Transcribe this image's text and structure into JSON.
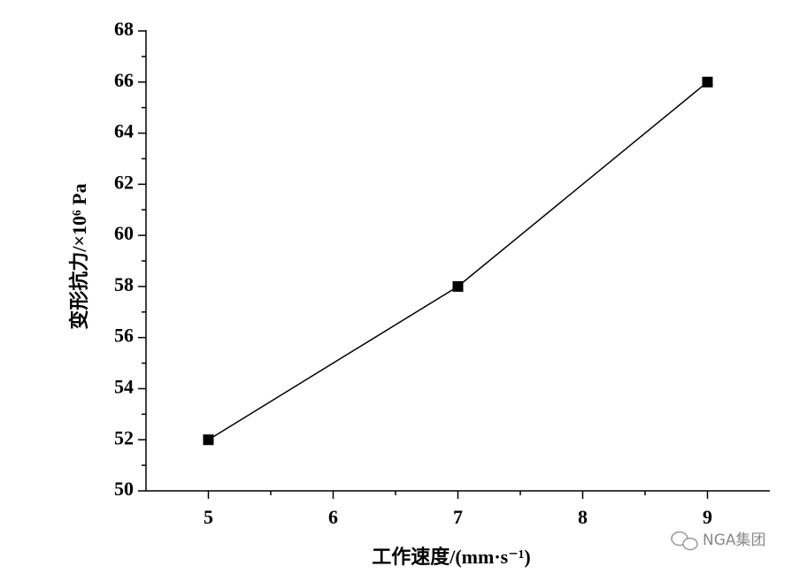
{
  "chart_data": {
    "type": "line",
    "x": [
      5,
      7,
      9
    ],
    "series": [
      {
        "color": "#000000",
        "values": [
          52,
          58,
          66
        ]
      }
    ],
    "xlim": [
      4.5,
      9.5
    ],
    "xticks": [
      5,
      6,
      7,
      8,
      9
    ],
    "ylim": [
      50,
      68
    ],
    "yticks": [
      50,
      52,
      54,
      56,
      58,
      60,
      62,
      64,
      66,
      68
    ],
    "xlabel": "工作速度/(mm·s⁻¹)",
    "ylabel": "变形抗力/×10⁶ Pa",
    "watermark": "NGA集团"
  }
}
